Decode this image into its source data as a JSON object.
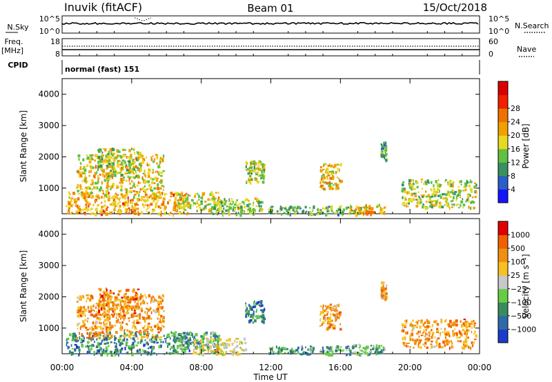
{
  "header": {
    "station": "Inuvik (fitACF)",
    "beam": "Beam 01",
    "date": "15/Oct/2018"
  },
  "summary_panels": {
    "nsky": {
      "label": "N.Sky",
      "ticks_left": [
        "10^5",
        "10^0"
      ],
      "ticks_right": [
        "10^5",
        "10^0"
      ],
      "right_label": "N.Search",
      "right_label_style": "dotted"
    },
    "freq": {
      "label_line1": "Freq.",
      "label_line2": "[MHz]",
      "ticks_left": [
        "18",
        "8"
      ],
      "ticks_right": [
        "60",
        "0"
      ],
      "right_label": "Nave",
      "right_label_style": "dotted"
    },
    "cpid": {
      "label": "CPID",
      "value": "normal (fast) 151"
    }
  },
  "chart_data": [
    {
      "type": "heatmap",
      "name": "power",
      "xlabel": "",
      "ylabel": "Slant Range [km]",
      "x_range_hours": [
        0,
        24
      ],
      "ylim": [
        180,
        4500
      ],
      "y_ticks": [
        "1000",
        "2000",
        "3000",
        "4000"
      ],
      "grid": false,
      "colorbar": {
        "label": "Power [dB]",
        "ticks": [
          "4",
          "8",
          "12",
          "16",
          "20",
          "24",
          "28"
        ],
        "colors": [
          "#1414ff",
          "#2a5ec8",
          "#3a9060",
          "#60c040",
          "#e8d820",
          "#f0a000",
          "#f07000",
          "#f02000",
          "#d80000"
        ]
      },
      "echo_regions": [
        {
          "t0": 0.2,
          "t1": 7.3,
          "r0": 180,
          "r1": 900,
          "level": 0.62
        },
        {
          "t0": 0.8,
          "t1": 5.8,
          "r0": 700,
          "r1": 2100,
          "level": 0.55
        },
        {
          "t0": 2.0,
          "t1": 4.5,
          "r0": 1400,
          "r1": 2300,
          "level": 0.45
        },
        {
          "t0": 6.3,
          "t1": 9.0,
          "r0": 300,
          "r1": 900,
          "level": 0.5
        },
        {
          "t0": 8.5,
          "t1": 11.5,
          "r0": 180,
          "r1": 700,
          "level": 0.4
        },
        {
          "t0": 10.5,
          "t1": 11.6,
          "r0": 1200,
          "r1": 1900,
          "level": 0.45
        },
        {
          "t0": 14.8,
          "t1": 16.0,
          "r0": 1000,
          "r1": 1800,
          "level": 0.55
        },
        {
          "t0": 16.5,
          "t1": 18.5,
          "r0": 180,
          "r1": 500,
          "level": 0.6
        },
        {
          "t0": 18.3,
          "t1": 18.6,
          "r0": 1900,
          "r1": 2500,
          "level": 0.35
        },
        {
          "t0": 19.5,
          "t1": 23.8,
          "r0": 400,
          "r1": 1300,
          "level": 0.45
        },
        {
          "t0": 11.8,
          "t1": 16.8,
          "r0": 180,
          "r1": 450,
          "level": 0.35
        }
      ]
    },
    {
      "type": "heatmap",
      "name": "velocity",
      "xlabel": "Time UT",
      "ylabel": "Slant Range [km]",
      "x_range_hours": [
        0,
        24
      ],
      "x_ticks": [
        "00:00",
        "04:00",
        "08:00",
        "12:00",
        "16:00",
        "20:00",
        "00:00"
      ],
      "ylim": [
        180,
        4500
      ],
      "y_ticks": [
        "1000",
        "2000",
        "3000",
        "4000"
      ],
      "grid": false,
      "colorbar": {
        "label": "Velocity [m s⁻¹]",
        "ticks": [
          "1000",
          "500",
          "100",
          "25",
          "−25",
          "−100",
          "−500",
          "−1000"
        ],
        "colors": [
          "#1a3cc8",
          "#2f6aa8",
          "#3a8a60",
          "#66cc44",
          "#c8c8c8",
          "#f8c020",
          "#f09010",
          "#f06000",
          "#e00000"
        ]
      },
      "echo_regions": [
        {
          "t0": 0.2,
          "t1": 7.3,
          "r0": 180,
          "r1": 900,
          "level": 0.25
        },
        {
          "t0": 0.8,
          "t1": 5.8,
          "r0": 700,
          "r1": 2100,
          "level": 0.72
        },
        {
          "t0": 2.0,
          "t1": 4.5,
          "r0": 1400,
          "r1": 2300,
          "level": 0.75
        },
        {
          "t0": 6.3,
          "t1": 9.0,
          "r0": 300,
          "r1": 900,
          "level": 0.3
        },
        {
          "t0": 7.5,
          "t1": 10.5,
          "r0": 180,
          "r1": 700,
          "level": 0.5
        },
        {
          "t0": 10.5,
          "t1": 11.6,
          "r0": 1200,
          "r1": 1900,
          "level": 0.25
        },
        {
          "t0": 14.8,
          "t1": 16.0,
          "r0": 1000,
          "r1": 1800,
          "level": 0.7
        },
        {
          "t0": 16.5,
          "t1": 18.5,
          "r0": 180,
          "r1": 500,
          "level": 0.35
        },
        {
          "t0": 18.3,
          "t1": 18.6,
          "r0": 1900,
          "r1": 2500,
          "level": 0.7
        },
        {
          "t0": 19.5,
          "t1": 23.8,
          "r0": 400,
          "r1": 1300,
          "level": 0.72
        },
        {
          "t0": 11.8,
          "t1": 16.8,
          "r0": 180,
          "r1": 450,
          "level": 0.3
        }
      ]
    }
  ]
}
